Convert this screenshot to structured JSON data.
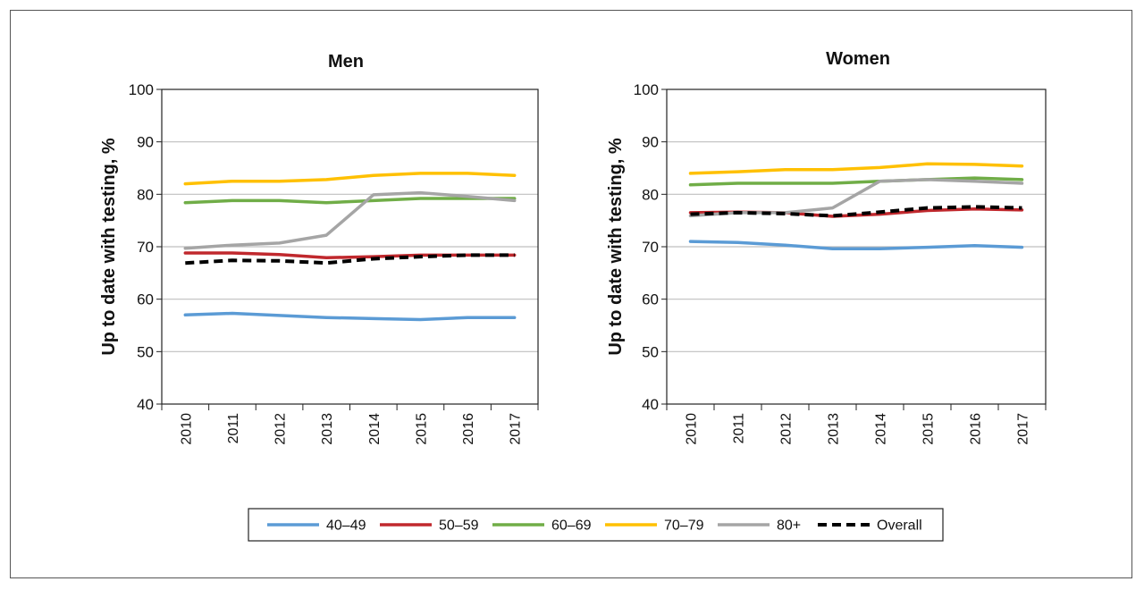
{
  "chart_data": [
    {
      "type": "line",
      "title": "Men",
      "ylabel": "Up to date with testing, %",
      "xlabel": "",
      "ylim": [
        40,
        100
      ],
      "yticks": [
        40,
        50,
        60,
        70,
        80,
        90,
        100
      ],
      "categories": [
        "2010",
        "2011",
        "2012",
        "2013",
        "2014",
        "2015",
        "2016",
        "2017"
      ],
      "grid": true,
      "series": [
        {
          "name": "40–49",
          "color": "#5b9bd5",
          "dash": false,
          "values": [
            57.0,
            57.3,
            56.9,
            56.5,
            56.3,
            56.1,
            56.5,
            56.5
          ]
        },
        {
          "name": "50–59",
          "color": "#c0282d",
          "dash": false,
          "values": [
            68.8,
            68.8,
            68.5,
            67.9,
            68.1,
            68.4,
            68.4,
            68.4
          ]
        },
        {
          "name": "60–69",
          "color": "#70ad47",
          "dash": false,
          "values": [
            78.4,
            78.8,
            78.8,
            78.4,
            78.8,
            79.2,
            79.2,
            79.2
          ]
        },
        {
          "name": "70–79",
          "color": "#ffc000",
          "dash": false,
          "values": [
            82.0,
            82.5,
            82.5,
            82.8,
            83.6,
            84.0,
            84.0,
            83.6
          ]
        },
        {
          "name": "80+",
          "color": "#a5a5a5",
          "dash": false,
          "values": [
            69.7,
            70.3,
            70.7,
            72.2,
            79.9,
            80.3,
            79.6,
            78.8
          ]
        },
        {
          "name": "Overall",
          "color": "#000000",
          "dash": true,
          "values": [
            66.9,
            67.4,
            67.3,
            66.9,
            67.7,
            68.1,
            68.4,
            68.4
          ]
        }
      ]
    },
    {
      "type": "line",
      "title": "Women",
      "ylabel": "Up to date with testing, %",
      "xlabel": "",
      "ylim": [
        40,
        100
      ],
      "yticks": [
        40,
        50,
        60,
        70,
        80,
        90,
        100
      ],
      "categories": [
        "2010",
        "2011",
        "2012",
        "2013",
        "2014",
        "2015",
        "2016",
        "2017"
      ],
      "grid": true,
      "series": [
        {
          "name": "40–49",
          "color": "#5b9bd5",
          "dash": false,
          "values": [
            71.0,
            70.8,
            70.3,
            69.6,
            69.6,
            69.9,
            70.2,
            69.9
          ]
        },
        {
          "name": "50–59",
          "color": "#c0282d",
          "dash": false,
          "values": [
            76.5,
            76.6,
            76.5,
            75.8,
            76.2,
            76.9,
            77.2,
            77.0
          ]
        },
        {
          "name": "60–69",
          "color": "#70ad47",
          "dash": false,
          "values": [
            81.8,
            82.1,
            82.1,
            82.1,
            82.5,
            82.8,
            83.1,
            82.8
          ]
        },
        {
          "name": "70–79",
          "color": "#ffc000",
          "dash": false,
          "values": [
            84.0,
            84.3,
            84.7,
            84.7,
            85.1,
            85.8,
            85.7,
            85.4
          ]
        },
        {
          "name": "80+",
          "color": "#a5a5a5",
          "dash": false,
          "values": [
            75.9,
            76.5,
            76.5,
            77.4,
            82.5,
            82.8,
            82.5,
            82.1
          ]
        },
        {
          "name": "Overall",
          "color": "#000000",
          "dash": true,
          "values": [
            76.2,
            76.5,
            76.3,
            75.9,
            76.6,
            77.4,
            77.6,
            77.4
          ]
        }
      ]
    }
  ],
  "legend": {
    "placement": "bottom-center",
    "items": [
      {
        "label": "40–49",
        "color": "#5b9bd5",
        "dash": false
      },
      {
        "label": "50–59",
        "color": "#c0282d",
        "dash": false
      },
      {
        "label": "60–69",
        "color": "#70ad47",
        "dash": false
      },
      {
        "label": "70–79",
        "color": "#ffc000",
        "dash": false
      },
      {
        "label": "80+",
        "color": "#a5a5a5",
        "dash": false
      },
      {
        "label": "Overall",
        "color": "#000000",
        "dash": true
      }
    ]
  }
}
